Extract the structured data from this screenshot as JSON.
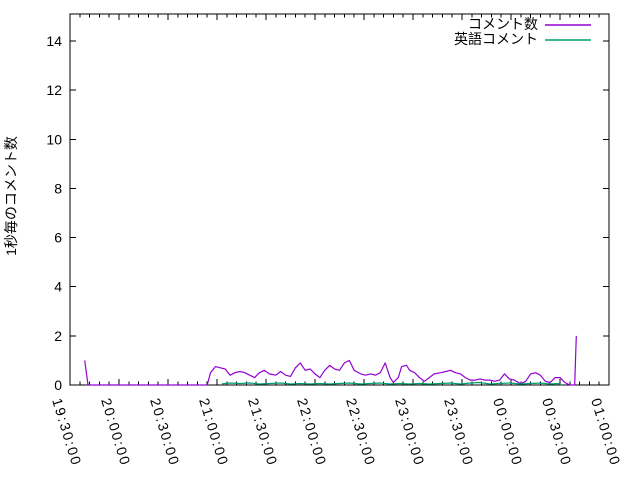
{
  "chart_data": {
    "type": "line",
    "title": "",
    "xlabel": "",
    "ylabel": "1秒毎のコメント数",
    "grid": false,
    "colors": {
      "background": "#ffffff",
      "border": "#000000",
      "text": "#000000"
    },
    "x_axis": {
      "kind": "time",
      "start": "19:30:00",
      "end": "01:00:00",
      "major_tick_minutes": 30,
      "minor_tick_minutes": 6,
      "label_rotation_deg": 73,
      "tick_labels": [
        "19:30:00",
        "20:00:00",
        "20:30:00",
        "21:00:00",
        "21:30:00",
        "22:00:00",
        "22:30:00",
        "23:00:00",
        "23:30:00",
        "00:00:00",
        "00:30:00",
        "01:00:00"
      ]
    },
    "y_axis": {
      "min": 0,
      "max": 15.1,
      "ticks": [
        0,
        2,
        4,
        6,
        8,
        10,
        12,
        14
      ]
    },
    "legend": {
      "position": "top-right-inside",
      "entries": [
        "コメント数",
        "英語コメント"
      ]
    },
    "series": [
      {
        "id": "comment-count",
        "name": "コメント数",
        "color": "#9400d3",
        "points": [
          [
            "19:39",
            1
          ],
          [
            "19:41",
            0
          ],
          [
            "19:45",
            0
          ],
          [
            "20:00",
            0
          ],
          [
            "20:15",
            0
          ],
          [
            "20:30",
            0
          ],
          [
            "20:45",
            0
          ],
          [
            "20:54",
            0
          ],
          [
            "20:56",
            0.5
          ],
          [
            "20:59",
            0.75
          ],
          [
            "21:02",
            0.7
          ],
          [
            "21:05",
            0.65
          ],
          [
            "21:08",
            0.4
          ],
          [
            "21:11",
            0.5
          ],
          [
            "21:14",
            0.55
          ],
          [
            "21:17",
            0.5
          ],
          [
            "21:20",
            0.4
          ],
          [
            "21:23",
            0.3
          ],
          [
            "21:26",
            0.5
          ],
          [
            "21:29",
            0.6
          ],
          [
            "21:32",
            0.45
          ],
          [
            "21:36",
            0.4
          ],
          [
            "21:39",
            0.55
          ],
          [
            "21:42",
            0.4
          ],
          [
            "21:45",
            0.35
          ],
          [
            "21:48",
            0.7
          ],
          [
            "21:51",
            0.9
          ],
          [
            "21:54",
            0.6
          ],
          [
            "21:57",
            0.65
          ],
          [
            "22:00",
            0.45
          ],
          [
            "22:03",
            0.3
          ],
          [
            "22:06",
            0.6
          ],
          [
            "22:09",
            0.8
          ],
          [
            "22:12",
            0.65
          ],
          [
            "22:15",
            0.6
          ],
          [
            "22:18",
            0.9
          ],
          [
            "22:21",
            1
          ],
          [
            "22:24",
            0.6
          ],
          [
            "22:28",
            0.45
          ],
          [
            "22:31",
            0.4
          ],
          [
            "22:34",
            0.45
          ],
          [
            "22:37",
            0.4
          ],
          [
            "22:40",
            0.5
          ],
          [
            "22:43",
            0.9
          ],
          [
            "22:46",
            0.3
          ],
          [
            "22:48",
            0.1
          ],
          [
            "22:51",
            0.3
          ],
          [
            "22:53",
            0.75
          ],
          [
            "22:56",
            0.8
          ],
          [
            "22:58",
            0.6
          ],
          [
            "23:01",
            0.5
          ],
          [
            "23:04",
            0.3
          ],
          [
            "23:07",
            0.15
          ],
          [
            "23:10",
            0.3
          ],
          [
            "23:13",
            0.45
          ],
          [
            "23:17",
            0.5
          ],
          [
            "23:20",
            0.55
          ],
          [
            "23:23",
            0.6
          ],
          [
            "23:26",
            0.5
          ],
          [
            "23:29",
            0.45
          ],
          [
            "23:32",
            0.3
          ],
          [
            "23:35",
            0.2
          ],
          [
            "23:38",
            0.2
          ],
          [
            "23:41",
            0.25
          ],
          [
            "23:44",
            0.2
          ],
          [
            "23:47",
            0.2
          ],
          [
            "23:50",
            0.15
          ],
          [
            "23:53",
            0.2
          ],
          [
            "23:56",
            0.45
          ],
          [
            "23:59",
            0.25
          ],
          [
            "00:02",
            0.2
          ],
          [
            "00:06",
            0.05
          ],
          [
            "00:09",
            0.15
          ],
          [
            "00:12",
            0.45
          ],
          [
            "00:15",
            0.5
          ],
          [
            "00:18",
            0.4
          ],
          [
            "00:21",
            0.15
          ],
          [
            "00:24",
            0.1
          ],
          [
            "00:27",
            0.3
          ],
          [
            "00:30",
            0.3
          ],
          [
            "00:33",
            0.1
          ],
          [
            "00:36",
            0
          ],
          [
            "00:39",
            0
          ],
          [
            "00:40",
            2
          ]
        ]
      },
      {
        "id": "english-comment",
        "name": "英語コメント",
        "color": "#009e73",
        "points": [
          [
            "21:03",
            0.05
          ],
          [
            "21:08",
            0.08
          ],
          [
            "21:14",
            0.06
          ],
          [
            "21:20",
            0.08
          ],
          [
            "21:26",
            0.04
          ],
          [
            "21:32",
            0.06
          ],
          [
            "21:39",
            0.08
          ],
          [
            "21:45",
            0.04
          ],
          [
            "21:51",
            0.06
          ],
          [
            "21:57",
            0.04
          ],
          [
            "22:03",
            0.06
          ],
          [
            "22:09",
            0.04
          ],
          [
            "22:15",
            0.06
          ],
          [
            "22:21",
            0.08
          ],
          [
            "22:28",
            0.04
          ],
          [
            "22:34",
            0.06
          ],
          [
            "22:40",
            0.08
          ],
          [
            "22:46",
            0.04
          ],
          [
            "22:52",
            0.06
          ],
          [
            "22:58",
            0.04
          ],
          [
            "23:04",
            0.06
          ],
          [
            "23:10",
            0.04
          ],
          [
            "23:17",
            0.06
          ],
          [
            "23:23",
            0.08
          ],
          [
            "23:29",
            0.04
          ],
          [
            "23:35",
            0.08
          ],
          [
            "23:41",
            0.1
          ],
          [
            "23:47",
            0.04
          ],
          [
            "23:53",
            0.06
          ],
          [
            "23:59",
            0.08
          ],
          [
            "00:06",
            0.04
          ],
          [
            "00:12",
            0.06
          ],
          [
            "00:18",
            0.08
          ],
          [
            "00:24",
            0.04
          ],
          [
            "00:29",
            0.06
          ],
          [
            "00:31",
            0
          ]
        ]
      }
    ]
  }
}
